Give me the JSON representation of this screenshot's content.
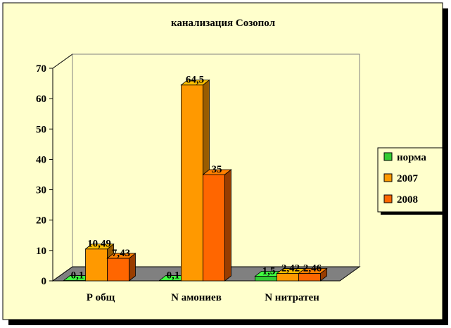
{
  "chart_data": {
    "type": "bar",
    "title": "канализация Созопол",
    "categories": [
      "Р общ",
      "N амониев",
      "N нитратен"
    ],
    "series": [
      {
        "name": "норма",
        "values": [
          0.1,
          0.1,
          1.5
        ],
        "labels": [
          "0,1",
          "0,1",
          "1,5"
        ],
        "color": "#33cc33"
      },
      {
        "name": "2007",
        "values": [
          10.49,
          64.5,
          2.42
        ],
        "labels": [
          "10,49",
          "64,5",
          "2,42"
        ],
        "color": "#ff9900"
      },
      {
        "name": "2008",
        "values": [
          7.43,
          35,
          2.46
        ],
        "labels": [
          "7,43",
          "35",
          "2,46"
        ],
        "color": "#ff6600"
      }
    ],
    "y_ticks": [
      0,
      10,
      20,
      30,
      40,
      50,
      60,
      70
    ],
    "ylim": [
      0,
      70
    ],
    "legend": "right",
    "grid": false,
    "background": "#ffffcc",
    "floor_color": "#808080",
    "three_d": true
  }
}
